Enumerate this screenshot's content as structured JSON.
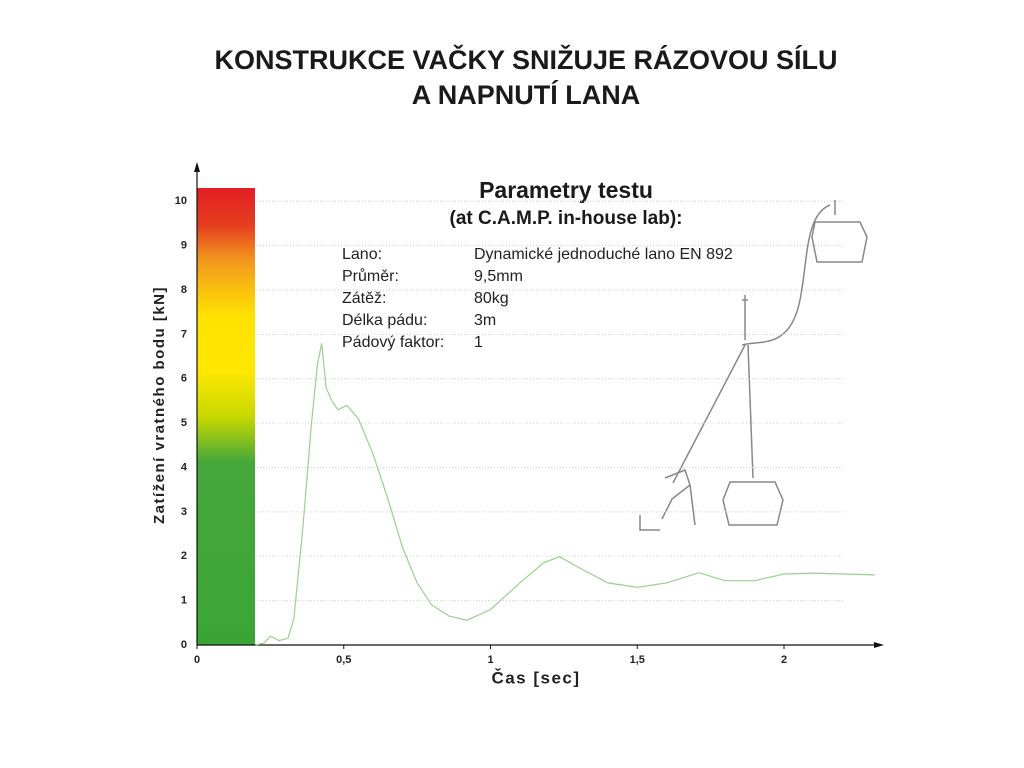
{
  "chart_data": {
    "type": "line",
    "title": [
      "KONSTRUKCE VAČKY SNIŽUJE RÁZOVOU SÍLU",
      "A NAPNUTÍ LANA"
    ],
    "x_label": "Čas [sec]",
    "y_label": "Zatížení vratného bodu [kN]",
    "x": [
      0.2,
      0.23,
      0.25,
      0.28,
      0.31,
      0.33,
      0.36,
      0.39,
      0.41,
      0.425,
      0.44,
      0.46,
      0.48,
      0.51,
      0.55,
      0.6,
      0.65,
      0.7,
      0.75,
      0.8,
      0.86,
      0.92,
      1.0,
      1.1,
      1.18,
      1.235,
      1.3,
      1.4,
      1.5,
      1.6,
      1.71,
      1.8,
      1.9,
      2.0,
      2.1,
      2.2,
      2.31
    ],
    "series": [
      {
        "name": "Zatížení",
        "color": "#9ccf8f",
        "values": [
          0,
          0.05,
          0.2,
          0.1,
          0.15,
          0.6,
          2.6,
          5.0,
          6.3,
          6.8,
          5.8,
          5.5,
          5.3,
          5.4,
          5.1,
          4.3,
          3.3,
          2.2,
          1.4,
          0.9,
          0.65,
          0.56,
          0.8,
          1.4,
          1.85,
          1.99,
          1.75,
          1.4,
          1.3,
          1.4,
          1.63,
          1.45,
          1.45,
          1.6,
          1.62,
          1.6,
          1.58
        ]
      }
    ],
    "xlim": [
      0,
      2.31
    ],
    "ylim": [
      0,
      10.3
    ],
    "xticks": [
      0,
      {
        "value": 0.5,
        "label": "0,5"
      },
      1,
      {
        "value": 1.5,
        "label": "1,5"
      },
      2
    ],
    "yticks": [
      0,
      1,
      2,
      3,
      4,
      5,
      6,
      7,
      8,
      9,
      10
    ],
    "grid": true,
    "parameters": {
      "heading": "Parametry testu",
      "subheading": "(at C.A.M.P. in-house lab):",
      "rows": [
        [
          "Lano:",
          "Dynamické jednoduché lano EN 892"
        ],
        [
          "Průměr:",
          "9,5mm"
        ],
        [
          "Zátěž:",
          "80kg"
        ],
        [
          "Délka pádu:",
          "3m"
        ],
        [
          "Pádový faktor:",
          "1"
        ]
      ]
    }
  }
}
